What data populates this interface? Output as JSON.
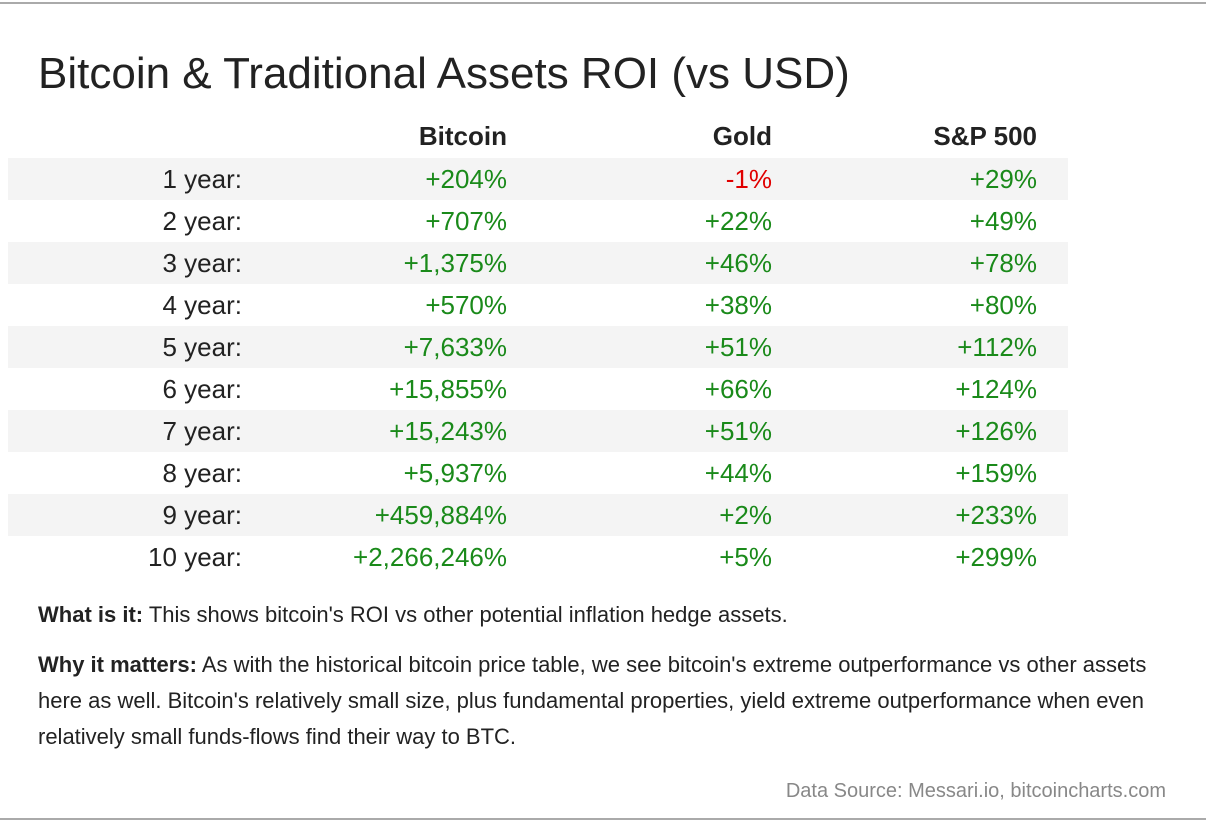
{
  "chart_data": {
    "type": "table",
    "title": "Bitcoin & Traditional Assets ROI (vs USD)",
    "columns": [
      "",
      "Bitcoin",
      "Gold",
      "S&P 500"
    ],
    "rows": [
      {
        "label": "1 year:",
        "values": [
          "+204%",
          "-1%",
          "+29%"
        ]
      },
      {
        "label": "2 year:",
        "values": [
          "+707%",
          "+22%",
          "+49%"
        ]
      },
      {
        "label": "3 year:",
        "values": [
          "+1,375%",
          "+46%",
          "+78%"
        ]
      },
      {
        "label": "4 year:",
        "values": [
          "+570%",
          "+38%",
          "+80%"
        ]
      },
      {
        "label": "5 year:",
        "values": [
          "+7,633%",
          "+51%",
          "+112%"
        ]
      },
      {
        "label": "6 year:",
        "values": [
          "+15,855%",
          "+66%",
          "+124%"
        ]
      },
      {
        "label": "7 year:",
        "values": [
          "+15,243%",
          "+51%",
          "+126%"
        ]
      },
      {
        "label": "8 year:",
        "values": [
          "+5,937%",
          "+44%",
          "+159%"
        ]
      },
      {
        "label": "9 year:",
        "values": [
          "+459,884%",
          "+2%",
          "+233%"
        ]
      },
      {
        "label": "10 year:",
        "values": [
          "+2,266,246%",
          "+5%",
          "+299%"
        ]
      }
    ],
    "colors": {
      "positive": "#1a8a1a",
      "negative": "#e00000",
      "row_shade": "#f4f4f4"
    }
  },
  "notes": [
    {
      "label": "What is it:",
      "text": " This shows bitcoin's ROI vs other potential inflation hedge assets."
    },
    {
      "label": "Why it matters:",
      "text": " As with the historical bitcoin price table, we see bitcoin's extreme outperformance vs other assets here as well. Bitcoin's relatively small size, plus fundamental properties, yield extreme outperformance when even relatively small funds-flows find their way to BTC."
    }
  ],
  "source": "Data Source: Messari.io, bitcoincharts.com"
}
